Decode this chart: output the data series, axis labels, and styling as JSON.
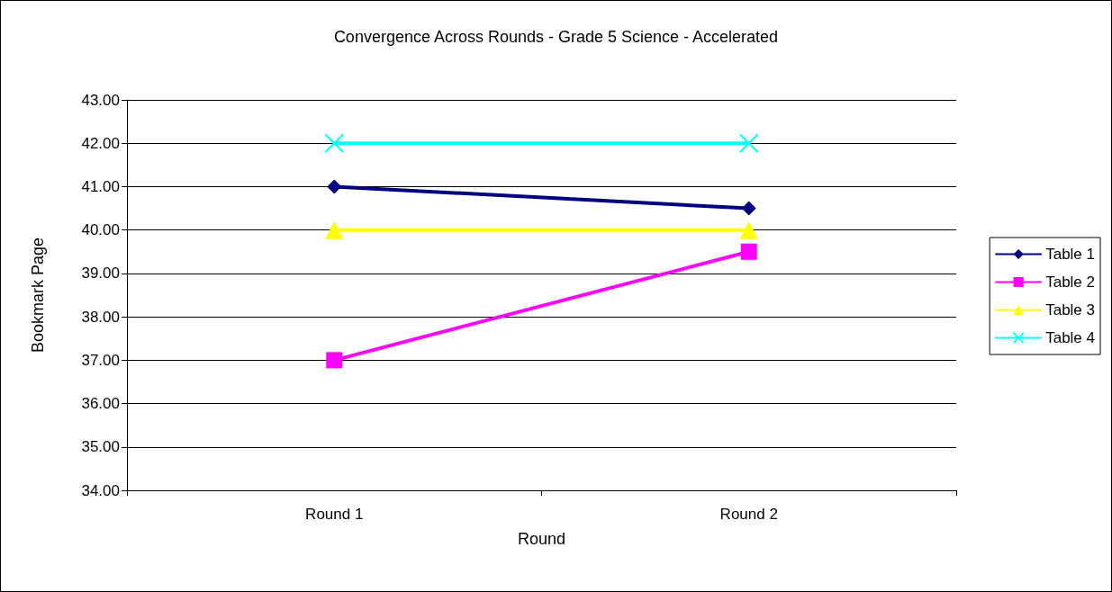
{
  "chart_data": {
    "type": "line",
    "title": "Convergence Across Rounds - Grade 5 Science - Accelerated",
    "xlabel": "Round",
    "ylabel": "Bookmark Page",
    "categories": [
      "Round 1",
      "Round 2"
    ],
    "series": [
      {
        "name": "Table 1",
        "color": "#000080",
        "marker": "diamond",
        "values": [
          41,
          40.5
        ]
      },
      {
        "name": "Table 2",
        "color": "#ff00ff",
        "marker": "square",
        "values": [
          37,
          39.5
        ]
      },
      {
        "name": "Table 3",
        "color": "#ffff00",
        "marker": "triangle",
        "values": [
          40,
          40
        ]
      },
      {
        "name": "Table 4",
        "color": "#00ffff",
        "marker": "cross",
        "values": [
          42,
          42
        ]
      }
    ],
    "ylim": [
      34,
      43
    ],
    "yticks": [
      {
        "value": 34,
        "label": "34.00"
      },
      {
        "value": 35,
        "label": "35.00"
      },
      {
        "value": 36,
        "label": "36.00"
      },
      {
        "value": 37,
        "label": "37.00"
      },
      {
        "value": 38,
        "label": "38.00"
      },
      {
        "value": 39,
        "label": "39.00"
      },
      {
        "value": 40,
        "label": "40.00"
      },
      {
        "value": 41,
        "label": "41.00"
      },
      {
        "value": 42,
        "label": "42.00"
      },
      {
        "value": 43,
        "label": "43.00"
      }
    ],
    "grid": "y",
    "legend": "right",
    "line_style": "solid"
  }
}
